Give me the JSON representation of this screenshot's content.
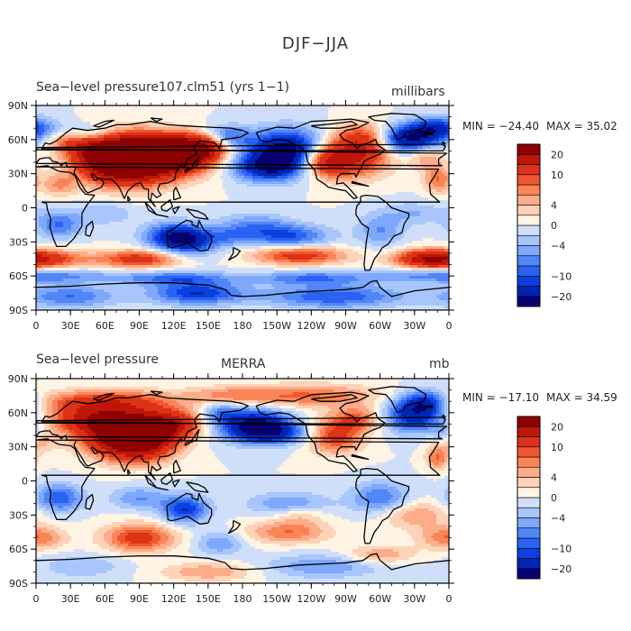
{
  "title": "DJF−JJA",
  "chart_data": [
    {
      "type": "heatmap",
      "title_left": "Sea−level pressure107.clm51 (yrs 1−1)",
      "title_center": "",
      "units": "millibars",
      "min_label": "MIN = −24.40",
      "max_label": "MAX =  35.02",
      "min": -24.4,
      "max": 35.02,
      "xticks": [
        "0",
        "30E",
        "60E",
        "90E",
        "120E",
        "150E",
        "180",
        "150W",
        "120W",
        "90W",
        "60W",
        "30W",
        "0"
      ],
      "yticks": [
        "90N",
        "60N",
        "30N",
        "0",
        "30S",
        "60S",
        "90S"
      ],
      "blobs": [
        [
          100,
          45,
          45,
          18,
          28
        ],
        [
          75,
          40,
          35,
          20,
          20
        ],
        [
          130,
          50,
          25,
          12,
          18
        ],
        [
          60,
          48,
          25,
          14,
          12
        ],
        [
          30,
          60,
          20,
          10,
          10
        ],
        [
          150,
          55,
          20,
          10,
          10
        ],
        [
          -90,
          45,
          35,
          18,
          16
        ],
        [
          -70,
          60,
          25,
          14,
          12
        ],
        [
          -110,
          40,
          20,
          12,
          10
        ],
        [
          -10,
          25,
          12,
          12,
          8
        ],
        [
          20,
          20,
          15,
          10,
          6
        ],
        [
          -20,
          45,
          15,
          10,
          6
        ],
        [
          -140,
          50,
          35,
          18,
          -20
        ],
        [
          -160,
          35,
          30,
          12,
          -12
        ],
        [
          -40,
          60,
          30,
          12,
          -18
        ],
        [
          -10,
          70,
          25,
          10,
          -12
        ],
        [
          165,
          62,
          20,
          10,
          -10
        ],
        [
          40,
          65,
          25,
          8,
          -8
        ],
        [
          120,
          -25,
          25,
          12,
          -12
        ],
        [
          135,
          -30,
          25,
          12,
          -10
        ],
        [
          -140,
          -25,
          35,
          10,
          -10
        ],
        [
          20,
          -15,
          20,
          12,
          -8
        ],
        [
          -60,
          -20,
          20,
          14,
          -6
        ],
        [
          -170,
          -15,
          30,
          10,
          -6
        ],
        [
          140,
          -75,
          40,
          10,
          -12
        ],
        [
          -100,
          -78,
          60,
          10,
          -10
        ],
        [
          30,
          -78,
          40,
          10,
          -8
        ],
        [
          0,
          -45,
          40,
          8,
          14
        ],
        [
          90,
          -45,
          35,
          8,
          12
        ],
        [
          -130,
          -42,
          40,
          8,
          12
        ],
        [
          -20,
          -45,
          25,
          8,
          10
        ],
        [
          0,
          -60,
          60,
          6,
          -8
        ],
        [
          120,
          -62,
          50,
          6,
          -8
        ],
        [
          -120,
          -62,
          50,
          6,
          -8
        ],
        [
          170,
          -25,
          20,
          8,
          -5
        ],
        [
          -30,
          -5,
          30,
          10,
          -4
        ],
        [
          60,
          -5,
          25,
          10,
          -4
        ]
      ]
    },
    {
      "type": "heatmap",
      "title_left": "Sea−level pressure",
      "title_center": "MERRA",
      "units": "mb",
      "min_label": "MIN = −17.10",
      "max_label": "MAX =  34.59",
      "min": -17.1,
      "max": 34.59,
      "xticks": [
        "0",
        "30E",
        "60E",
        "90E",
        "120E",
        "150E",
        "180",
        "150W",
        "120W",
        "90W",
        "60W",
        "30W",
        "0"
      ],
      "yticks": [
        "90N",
        "60N",
        "30N",
        "0",
        "30S",
        "60S",
        "90S"
      ],
      "blobs": [
        [
          90,
          38,
          30,
          18,
          26
        ],
        [
          70,
          45,
          35,
          20,
          18
        ],
        [
          120,
          50,
          25,
          12,
          14
        ],
        [
          40,
          55,
          30,
          12,
          10
        ],
        [
          60,
          70,
          60,
          10,
          10
        ],
        [
          -120,
          75,
          60,
          10,
          8
        ],
        [
          -100,
          40,
          25,
          15,
          12
        ],
        [
          -80,
          55,
          20,
          10,
          8
        ],
        [
          0,
          35,
          15,
          10,
          6
        ],
        [
          -10,
          20,
          10,
          10,
          8
        ],
        [
          170,
          75,
          40,
          8,
          6
        ],
        [
          -170,
          50,
          30,
          14,
          -16
        ],
        [
          -150,
          42,
          35,
          10,
          -10
        ],
        [
          -30,
          58,
          25,
          15,
          -14
        ],
        [
          -20,
          70,
          20,
          10,
          -10
        ],
        [
          -5,
          40,
          10,
          10,
          -6
        ],
        [
          160,
          60,
          15,
          10,
          -6
        ],
        [
          130,
          -25,
          20,
          12,
          -12
        ],
        [
          20,
          -15,
          20,
          12,
          -10
        ],
        [
          -60,
          -15,
          25,
          14,
          -8
        ],
        [
          -140,
          -20,
          35,
          10,
          -6
        ],
        [
          90,
          -15,
          25,
          10,
          -6
        ],
        [
          160,
          -55,
          20,
          10,
          -6
        ],
        [
          90,
          -50,
          30,
          12,
          12
        ],
        [
          0,
          -50,
          25,
          10,
          8
        ],
        [
          -140,
          -45,
          35,
          10,
          8
        ],
        [
          -30,
          -30,
          30,
          12,
          6
        ],
        [
          -130,
          -30,
          20,
          8,
          4
        ],
        [
          -110,
          -75,
          50,
          10,
          -6
        ],
        [
          40,
          -75,
          35,
          10,
          -4
        ],
        [
          -60,
          -65,
          30,
          8,
          6
        ],
        [
          150,
          -80,
          40,
          8,
          6
        ]
      ]
    }
  ],
  "colorbar": {
    "colors": [
      "#08006e",
      "#0025b5",
      "#0b3fdf",
      "#2a62f3",
      "#5286f7",
      "#7ea8fb",
      "#a8c6fc",
      "#cfdff9",
      "#fff3e3",
      "#fdd3b8",
      "#fcac88",
      "#f98557",
      "#f0572e",
      "#dc3216",
      "#c01608",
      "#8e0202"
    ],
    "labels": [
      "20",
      "10",
      "4",
      "0",
      "−4",
      "−10",
      "−20"
    ]
  }
}
